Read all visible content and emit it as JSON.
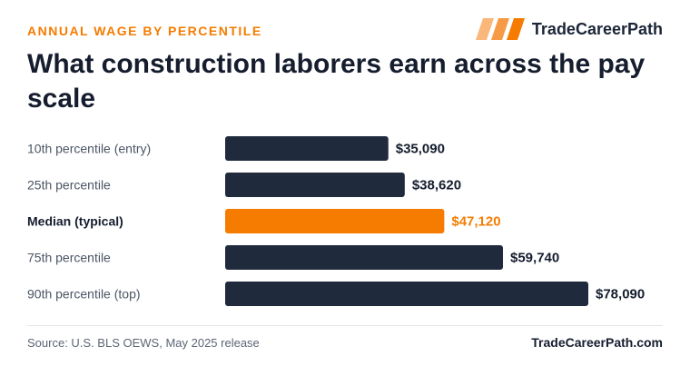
{
  "header": {
    "eyebrow": "ANNUAL WAGE BY PERCENTILE",
    "brand_name": "TradeCareerPath",
    "brand_icon": "stripes-logo-icon",
    "title": "What construction laborers earn across the pay scale"
  },
  "footer": {
    "source": "Source: U.S. BLS OEWS, May 2025 release",
    "site": "TradeCareerPath.com"
  },
  "colors": {
    "accent": "#f57c00",
    "bar": "#1f2a3d",
    "text": "#151d2e"
  },
  "chart_data": {
    "type": "bar",
    "orientation": "horizontal",
    "categories": [
      "10th percentile (entry)",
      "25th percentile",
      "Median (typical)",
      "75th percentile",
      "90th percentile (top)"
    ],
    "values": [
      35090,
      38620,
      47120,
      59740,
      78090
    ],
    "value_labels": [
      "$35,090",
      "$38,620",
      "$47,120",
      "$59,740",
      "$78,090"
    ],
    "highlight": "Median (typical)",
    "xlim": [
      0,
      78090
    ],
    "grid": false,
    "legend": "none"
  }
}
